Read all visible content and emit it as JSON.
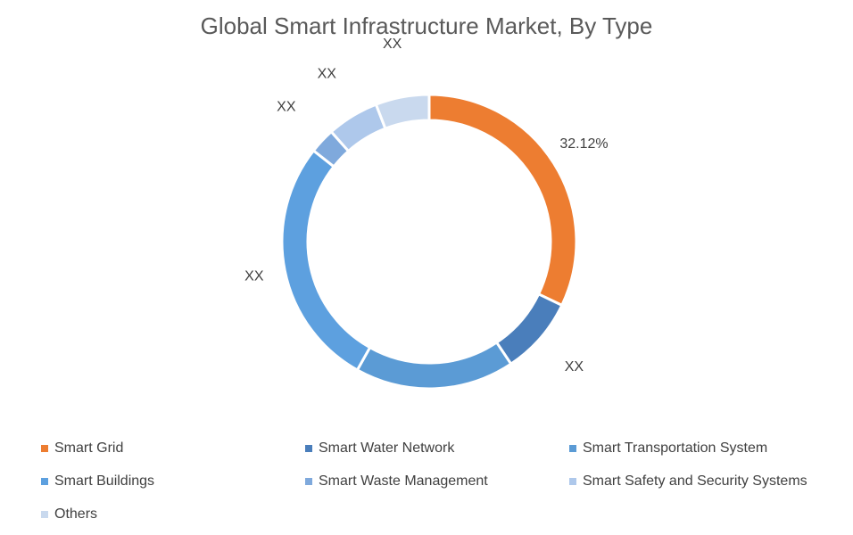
{
  "chart_data": {
    "type": "pie",
    "donut": true,
    "title": "Global Smart Infrastructure Market, By Type",
    "legend_position": "bottom",
    "slices": [
      {
        "name": "Smart Grid",
        "value": 32.12,
        "label": "32.12%",
        "color": "#ED7D31"
      },
      {
        "name": "Smart Water Network",
        "value": 8.5,
        "label": "XX",
        "color": "#4A7EBB"
      },
      {
        "name": "Smart Transportation System",
        "value": 17.5,
        "label": "XX",
        "color": "#5B9BD5"
      },
      {
        "name": "Smart Buildings",
        "value": 27.5,
        "label": "XX",
        "color": "#5DA0DF"
      },
      {
        "name": "Smart Waste Management",
        "value": 2.8,
        "label": "XX",
        "color": "#7FA9DC"
      },
      {
        "name": "Smart Safety and Security Systems",
        "value": 5.7,
        "label": "XX",
        "color": "#AEC8EB"
      },
      {
        "name": "Others",
        "value": 5.88,
        "label": "XX",
        "color": "#C9D9EE"
      }
    ]
  }
}
